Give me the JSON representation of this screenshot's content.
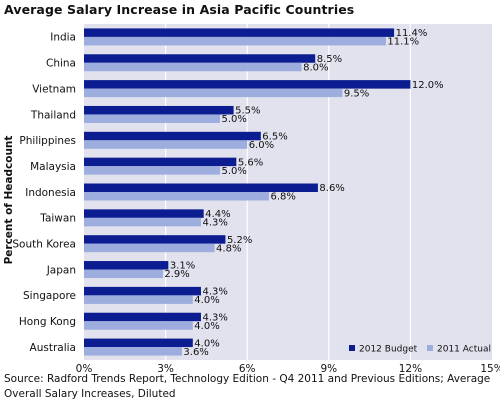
{
  "title": "Average Salary Increase in Asia Pacific Countries",
  "source": "Source: Radford Trends Report, Technology Edition - Q4 2011 and Previous Editions; Average Overall Salary Increases, Diluted",
  "colors": {
    "plot_background": "#e1e2ee",
    "budget": "#0b1d91",
    "actual": "#9daddd",
    "gridline": "#ffffff"
  },
  "chart_data": {
    "type": "bar",
    "orientation": "horizontal",
    "title": "Average Salary Increase in Asia Pacific Countries",
    "xlabel": "",
    "ylabel": "Percent of Headcount",
    "xlim": [
      0,
      15
    ],
    "xticks": [
      0,
      3,
      6,
      9,
      12,
      15
    ],
    "xtick_labels": [
      "0%",
      "3%",
      "6%",
      "9%",
      "12%",
      "15%"
    ],
    "grid": true,
    "legend_position": "bottom-right",
    "categories": [
      "India",
      "China",
      "Vietnam",
      "Thailand",
      "Philippines",
      "Malaysia",
      "Indonesia",
      "Taiwan",
      "South Korea",
      "Japan",
      "Singapore",
      "Hong Kong",
      "Australia"
    ],
    "series": [
      {
        "name": "2012 Budget",
        "values": [
          11.4,
          8.5,
          12.0,
          5.5,
          6.5,
          5.6,
          8.6,
          4.4,
          5.2,
          3.1,
          4.3,
          4.3,
          4.0
        ],
        "labels": [
          "11.4%",
          "8.5%",
          "12.0%",
          "5.5%",
          "6.5%",
          "5.6%",
          "8.6%",
          "4.4%",
          "5.2%",
          "3.1%",
          "4.3%",
          "4.3%",
          "4.0%"
        ]
      },
      {
        "name": "2011 Actual",
        "values": [
          11.1,
          8.0,
          9.5,
          5.0,
          6.0,
          5.0,
          6.8,
          4.3,
          4.8,
          2.9,
          4.0,
          4.0,
          3.6
        ],
        "labels": [
          "11.1%",
          "8.0%",
          "9.5%",
          "5.0%",
          "6.0%",
          "5.0%",
          "6.8%",
          "4.3%",
          "4.8%",
          "2.9%",
          "4.0%",
          "4.0%",
          "3.6%"
        ]
      }
    ]
  }
}
